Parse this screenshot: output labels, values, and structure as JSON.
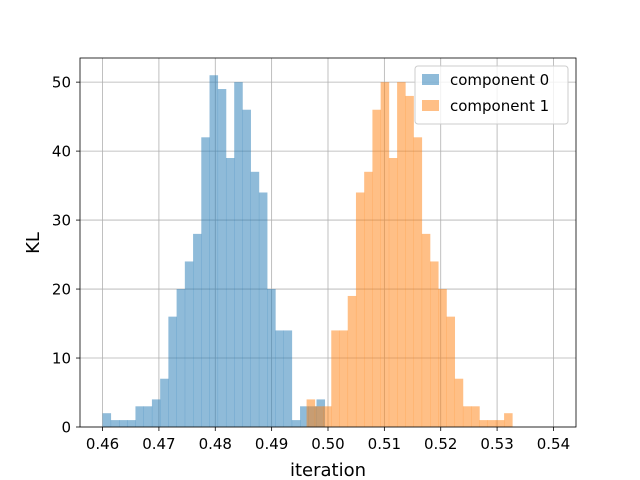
{
  "chart_data": {
    "type": "histogram",
    "title": "",
    "xlabel": "iteration",
    "ylabel": "KL",
    "xlim": [
      0.456,
      0.544
    ],
    "ylim": [
      0,
      53.5
    ],
    "grid": true,
    "legend_position": "top-right",
    "xticks": [
      0.46,
      0.47,
      0.48,
      0.49,
      0.5,
      0.51,
      0.52,
      0.53,
      0.54
    ],
    "xtick_labels": [
      "0.46",
      "0.47",
      "0.48",
      "0.49",
      "0.50",
      "0.51",
      "0.52",
      "0.53",
      "0.54"
    ],
    "yticks": [
      0,
      10,
      20,
      30,
      40,
      50
    ],
    "ytick_labels": [
      "0",
      "10",
      "20",
      "30",
      "40",
      "50"
    ],
    "series": [
      {
        "name": "component 0",
        "color": "#1f77b4",
        "opacity": 0.5,
        "bin_start": 0.46,
        "bin_width": 0.00146,
        "counts": [
          2,
          1,
          1,
          1,
          3,
          3,
          4,
          7,
          16,
          20,
          24,
          28,
          42,
          51,
          49,
          39,
          50,
          46,
          37,
          34,
          20,
          14,
          14,
          1,
          3,
          3,
          4
        ]
      },
      {
        "name": "component 1",
        "color": "#ff7f0e",
        "opacity": 0.5,
        "bin_start": 0.4962,
        "bin_width": 0.00146,
        "counts": [
          4,
          3,
          3,
          14,
          14,
          19,
          34,
          37,
          46,
          50,
          39,
          50,
          48,
          42,
          28,
          24,
          20,
          16,
          7,
          3,
          3,
          1,
          1,
          1,
          2
        ]
      }
    ]
  }
}
